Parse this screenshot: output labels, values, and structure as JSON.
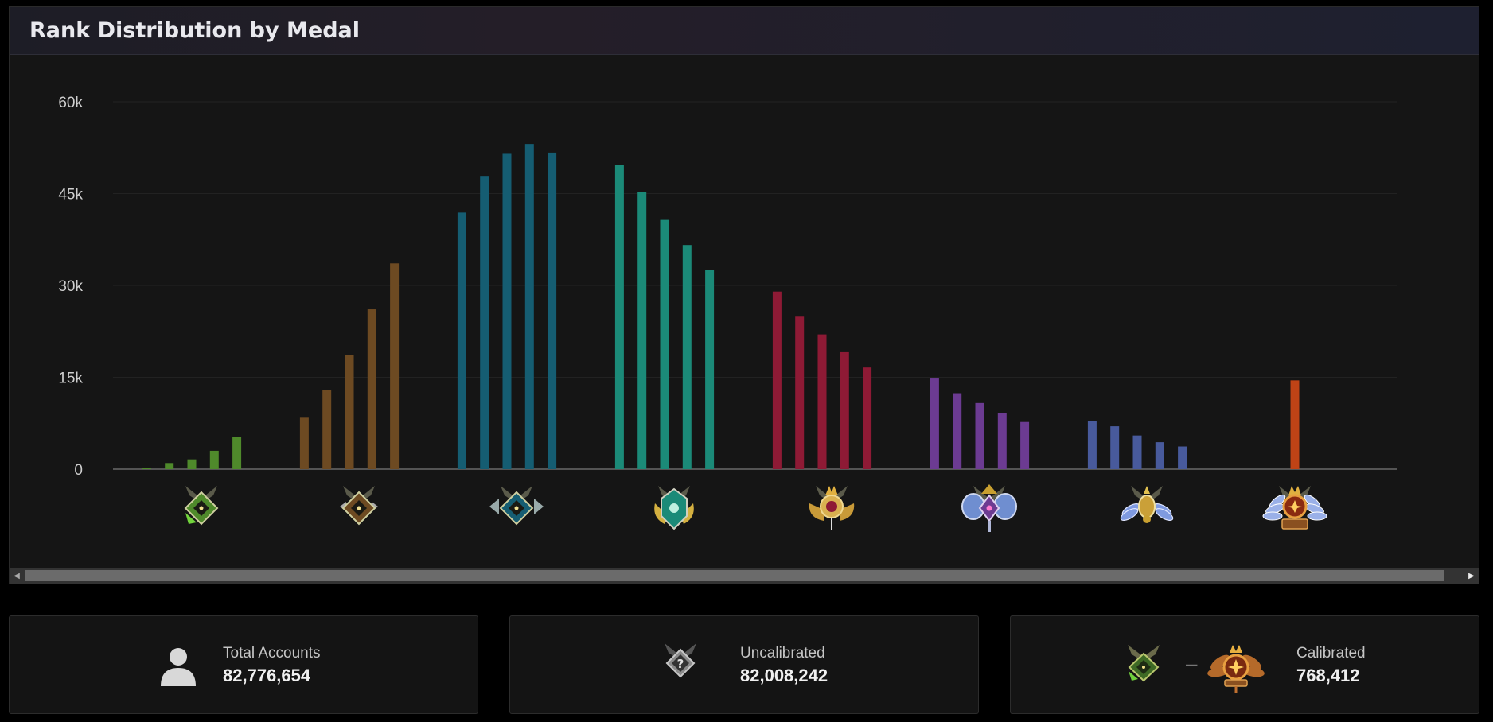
{
  "panel": {
    "title": "Rank Distribution by Medal"
  },
  "chart_data": {
    "type": "bar",
    "title": "Rank Distribution by Medal",
    "xlabel": "",
    "ylabel": "",
    "ylim": [
      0,
      60000
    ],
    "yticks": [
      0,
      15000,
      30000,
      45000,
      60000
    ],
    "ytick_labels": [
      "0",
      "15k",
      "30k",
      "45k",
      "60k"
    ],
    "grid": true,
    "legend": "none",
    "groups": [
      {
        "medal": "herald",
        "medal_icon": "herald-medal-icon",
        "color": "#4f8a2b",
        "values": [
          150,
          1000,
          1600,
          3000,
          5300
        ]
      },
      {
        "medal": "guardian",
        "medal_icon": "guardian-medal-icon",
        "color": "#6d4a22",
        "values": [
          8400,
          12900,
          18700,
          26100,
          33600
        ]
      },
      {
        "medal": "crusader",
        "medal_icon": "crusader-medal-icon",
        "color": "#155d72",
        "values": [
          41900,
          47900,
          51500,
          53100,
          51700
        ]
      },
      {
        "medal": "archon",
        "medal_icon": "archon-medal-icon",
        "color": "#1b8a78",
        "values": [
          49700,
          45200,
          40700,
          36600,
          32500
        ]
      },
      {
        "medal": "legend",
        "medal_icon": "legend-medal-icon",
        "color": "#8e1a35",
        "values": [
          29000,
          24900,
          22000,
          19100,
          16600
        ]
      },
      {
        "medal": "ancient",
        "medal_icon": "ancient-medal-icon",
        "color": "#6c3b92",
        "values": [
          14800,
          12400,
          10800,
          9200,
          7700
        ]
      },
      {
        "medal": "divine",
        "medal_icon": "divine-medal-icon",
        "color": "#485a9c",
        "values": [
          7900,
          7000,
          5500,
          4400,
          3700
        ]
      },
      {
        "medal": "immortal",
        "medal_icon": "immortal-medal-icon",
        "color": "#bf4316",
        "values": [
          14500
        ]
      }
    ]
  },
  "stats": {
    "total": {
      "label": "Total Accounts",
      "value": "82,776,654",
      "icon": "user-icon"
    },
    "uncalibrated": {
      "label": "Uncalibrated",
      "value": "82,008,242",
      "icon": "uncalibrated-medal-icon"
    },
    "calibrated": {
      "label": "Calibrated",
      "value": "768,412",
      "icons": [
        "herald-medal-icon",
        "immortal-medal-icon"
      ],
      "separator": "–"
    }
  }
}
